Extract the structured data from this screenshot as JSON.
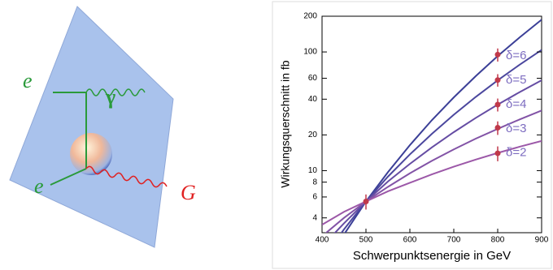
{
  "diagram": {
    "labels": [
      "e",
      "γ",
      "e",
      "G"
    ]
  },
  "chart_data": {
    "type": "line",
    "y_label": "Wirkungsquerschnitt in fb",
    "x_label": "Schwerpunktsenergie in GeV",
    "x": [
      400,
      450,
      500,
      550,
      600,
      650,
      700,
      750,
      800,
      850,
      900
    ],
    "xlim": [
      400,
      900
    ],
    "xticks": [
      400,
      500,
      600,
      700,
      800,
      900
    ],
    "ylim": [
      3,
      200
    ],
    "yticks": [
      4,
      6,
      8,
      10,
      20,
      40,
      60,
      100,
      200
    ],
    "ylog": true,
    "series": [
      {
        "name": "δ=6",
        "color": "#3b3f97",
        "values": [
          1.4,
          2.9,
          5.5,
          9.7,
          16.4,
          26.6,
          41.4,
          62.6,
          92.3,
          132.6,
          187
        ]
      },
      {
        "name": "δ=5",
        "color": "#4b479e",
        "values": [
          1.8,
          3.2,
          5.5,
          8.9,
          13.7,
          20.4,
          29.6,
          41.8,
          57.7,
          78.1,
          104
        ]
      },
      {
        "name": "δ=4",
        "color": "#654ca3",
        "values": [
          2.3,
          3.6,
          5.5,
          8.1,
          11.4,
          15.7,
          21.1,
          27.8,
          36.0,
          45.9,
          57.7
        ]
      },
      {
        "name": "δ=3",
        "color": "#8253a6",
        "values": [
          2.8,
          4.0,
          5.5,
          7.3,
          9.5,
          12.1,
          15.1,
          18.6,
          22.5,
          27.0,
          32.1
        ]
      },
      {
        "name": "δ=2",
        "color": "#9c58a8",
        "values": [
          3.5,
          4.5,
          5.5,
          6.7,
          7.9,
          9.3,
          10.8,
          12.4,
          14.1,
          15.9,
          17.8
        ]
      }
    ],
    "points": {
      "color": "#c0394a",
      "x": [
        500,
        800,
        800,
        800,
        800,
        800
      ],
      "values": [
        5.5,
        95,
        58,
        36,
        23,
        14
      ],
      "errors": [
        0.8,
        12,
        7,
        4.5,
        3,
        2
      ]
    },
    "label_color": "#7d6cc0"
  }
}
